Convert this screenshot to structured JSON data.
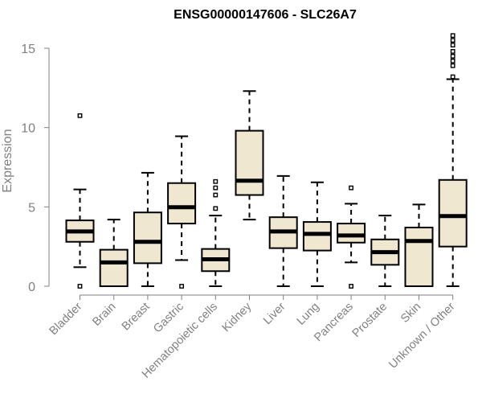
{
  "chart_data": {
    "type": "boxplot",
    "title": "ENSG00000147606 - SLC26A7",
    "xlabel": "",
    "ylabel": "Expression",
    "ylim": [
      0,
      15
    ],
    "yticks": [
      0,
      5,
      10,
      15
    ],
    "grid": false,
    "legend": "none",
    "box_fill": "#efe7d0",
    "categories": [
      "Bladder",
      "Brain",
      "Breast",
      "Gastric",
      "Hematopoietic cells",
      "Kidney",
      "Liver",
      "Lung",
      "Pancreas",
      "Prostate",
      "Skin",
      "Unknown / Other"
    ],
    "boxes": [
      {
        "whisker_low": 1.2,
        "q1": 2.8,
        "median": 3.45,
        "q3": 4.15,
        "whisker_high": 6.1,
        "outliers": [
          0.0,
          10.75
        ]
      },
      {
        "whisker_low": 0.0,
        "q1": 0.0,
        "median": 1.5,
        "q3": 2.3,
        "whisker_high": 4.2,
        "outliers": []
      },
      {
        "whisker_low": 0.0,
        "q1": 1.45,
        "median": 2.8,
        "q3": 4.65,
        "whisker_high": 7.15,
        "outliers": []
      },
      {
        "whisker_low": 1.65,
        "q1": 3.95,
        "median": 4.98,
        "q3": 6.5,
        "whisker_high": 9.45,
        "outliers": [
          0.0
        ]
      },
      {
        "whisker_low": 0.0,
        "q1": 0.95,
        "median": 1.7,
        "q3": 2.35,
        "whisker_high": 4.45,
        "outliers": [
          4.9,
          5.75,
          6.2,
          6.6
        ]
      },
      {
        "whisker_low": 4.2,
        "q1": 5.75,
        "median": 6.65,
        "q3": 9.8,
        "whisker_high": 12.3,
        "outliers": []
      },
      {
        "whisker_low": 0.0,
        "q1": 2.4,
        "median": 3.45,
        "q3": 4.35,
        "whisker_high": 6.95,
        "outliers": []
      },
      {
        "whisker_low": 0.0,
        "q1": 2.25,
        "median": 3.3,
        "q3": 4.05,
        "whisker_high": 6.55,
        "outliers": []
      },
      {
        "whisker_low": 1.5,
        "q1": 2.75,
        "median": 3.2,
        "q3": 3.95,
        "whisker_high": 5.2,
        "outliers": [
          0.0,
          6.2
        ]
      },
      {
        "whisker_low": 0.0,
        "q1": 1.35,
        "median": 2.15,
        "q3": 2.95,
        "whisker_high": 4.45,
        "outliers": []
      },
      {
        "whisker_low": 0.0,
        "q1": 0.0,
        "median": 2.85,
        "q3": 3.7,
        "whisker_high": 5.15,
        "outliers": []
      },
      {
        "whisker_low": 0.0,
        "q1": 2.5,
        "median": 4.42,
        "q3": 6.7,
        "whisker_high": 13.05,
        "outliers": [
          13.2,
          13.9,
          14.2,
          14.5,
          14.8,
          15.2,
          15.5,
          15.8
        ]
      }
    ]
  }
}
